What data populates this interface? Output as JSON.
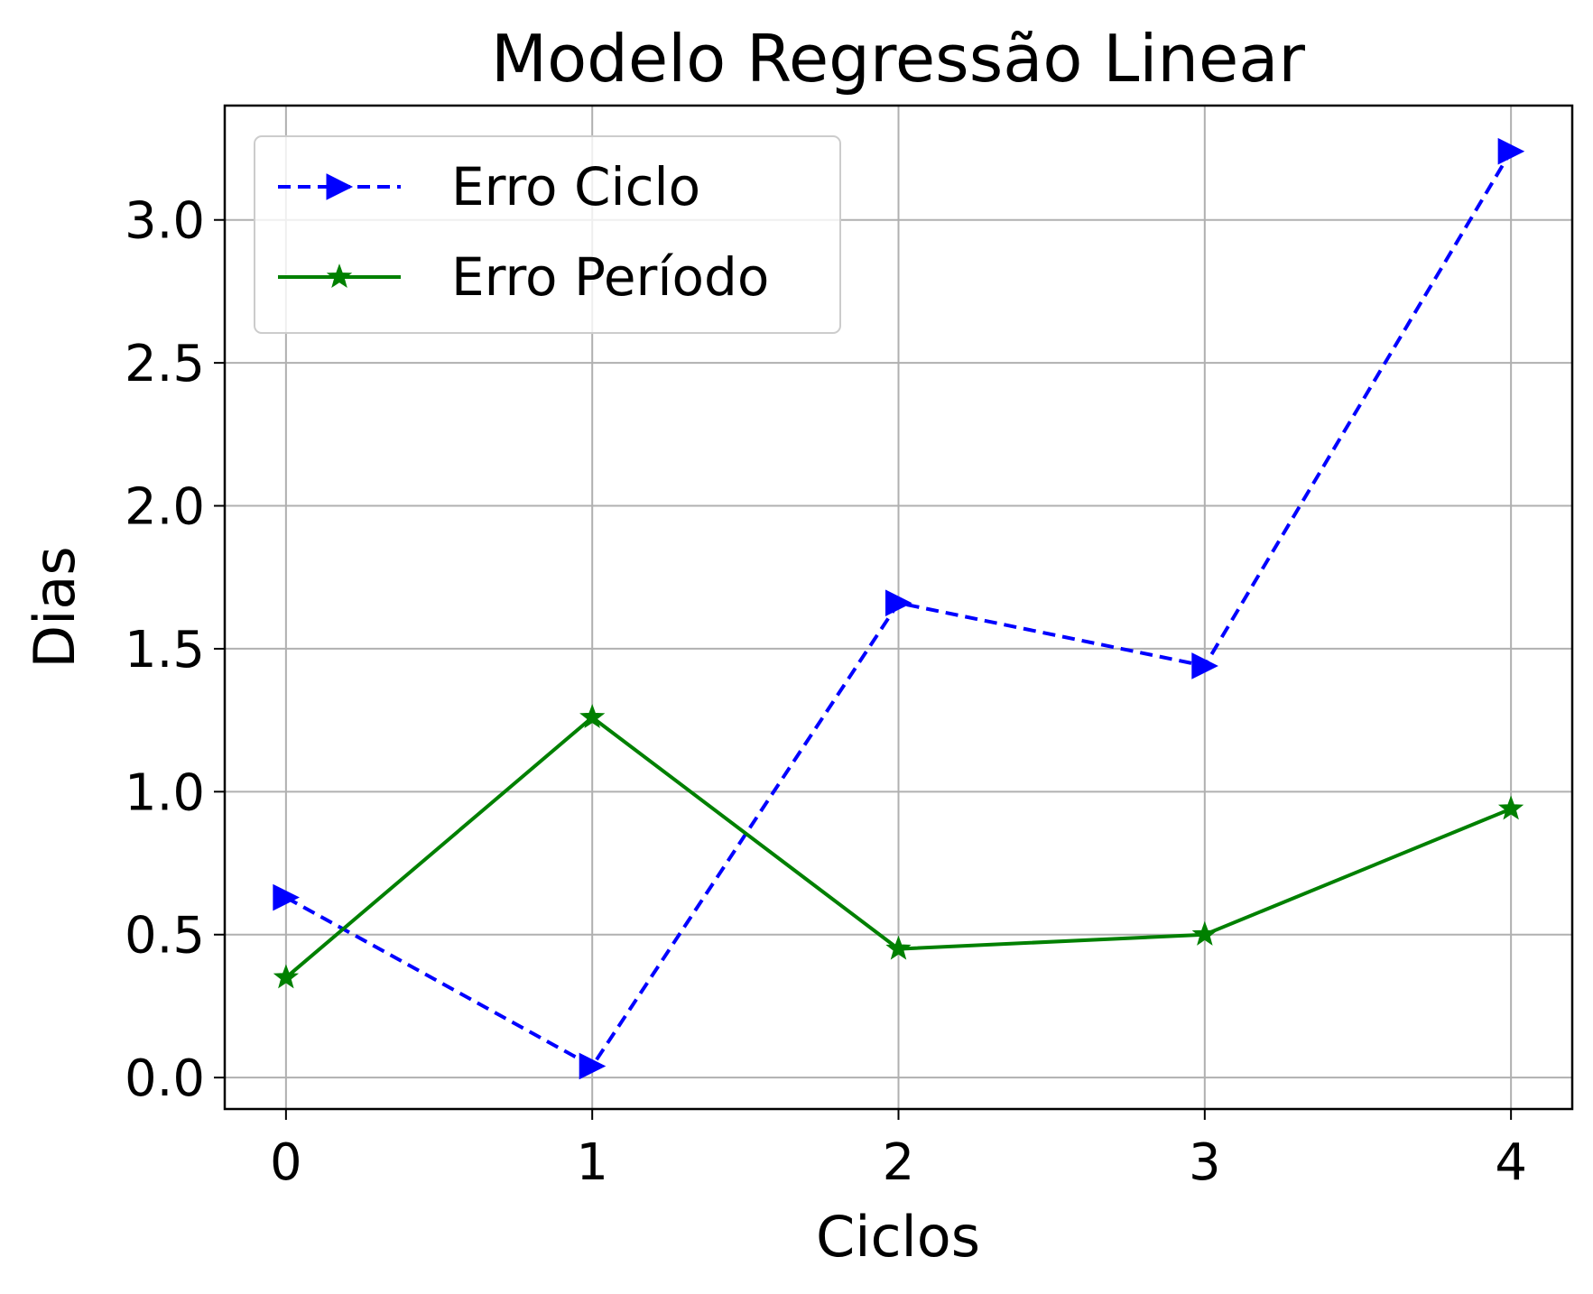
{
  "chart_data": {
    "type": "line",
    "title": "Modelo Regressão Linear",
    "xlabel": "Ciclos",
    "ylabel": "Dias",
    "x": [
      0,
      1,
      2,
      3,
      4
    ],
    "xticks": [
      "0",
      "1",
      "2",
      "3",
      "4"
    ],
    "yticks": [
      "0.0",
      "0.5",
      "1.0",
      "1.5",
      "2.0",
      "2.5",
      "3.0"
    ],
    "xlim": [
      -0.2,
      4.2
    ],
    "ylim": [
      -0.11,
      3.4
    ],
    "grid": true,
    "legend": "top-left",
    "series": [
      {
        "name": "Erro Ciclo",
        "values": [
          0.63,
          0.04,
          1.66,
          1.44,
          3.24
        ],
        "color": "#0000ff",
        "linestyle": "dashed",
        "marker": "triangle-right"
      },
      {
        "name": "Erro Período",
        "values": [
          0.35,
          1.26,
          0.45,
          0.5,
          0.94
        ],
        "color": "#008000",
        "linestyle": "solid",
        "marker": "star"
      }
    ]
  }
}
